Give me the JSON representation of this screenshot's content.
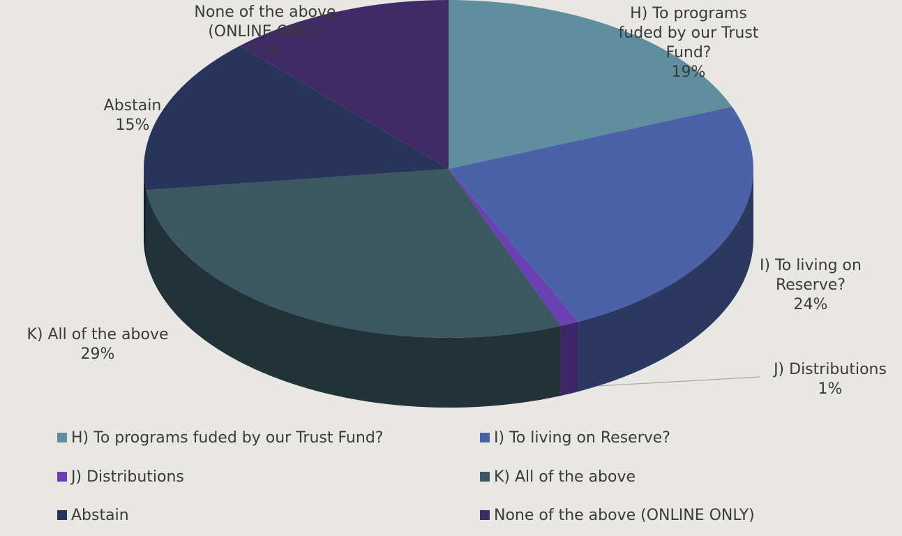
{
  "chart_data": {
    "type": "pie",
    "categories": [
      "H) To programs fuded by our Trust Fund?",
      "I) To living on Reserve?",
      "J) Distributions",
      "K) All of the above",
      "Abstain",
      "None of the above (ONLINE ONLY)"
    ],
    "values": [
      19,
      24,
      1,
      29,
      15,
      12
    ],
    "value_labels": [
      "19%",
      "24%",
      "1%",
      "29%",
      "15%",
      "12%"
    ],
    "colors": [
      "#5f8e9e",
      "#4b62a8",
      "#6a40b2",
      "#3b5762",
      "#27355a",
      "#402b66"
    ],
    "legend": "bottom"
  }
}
